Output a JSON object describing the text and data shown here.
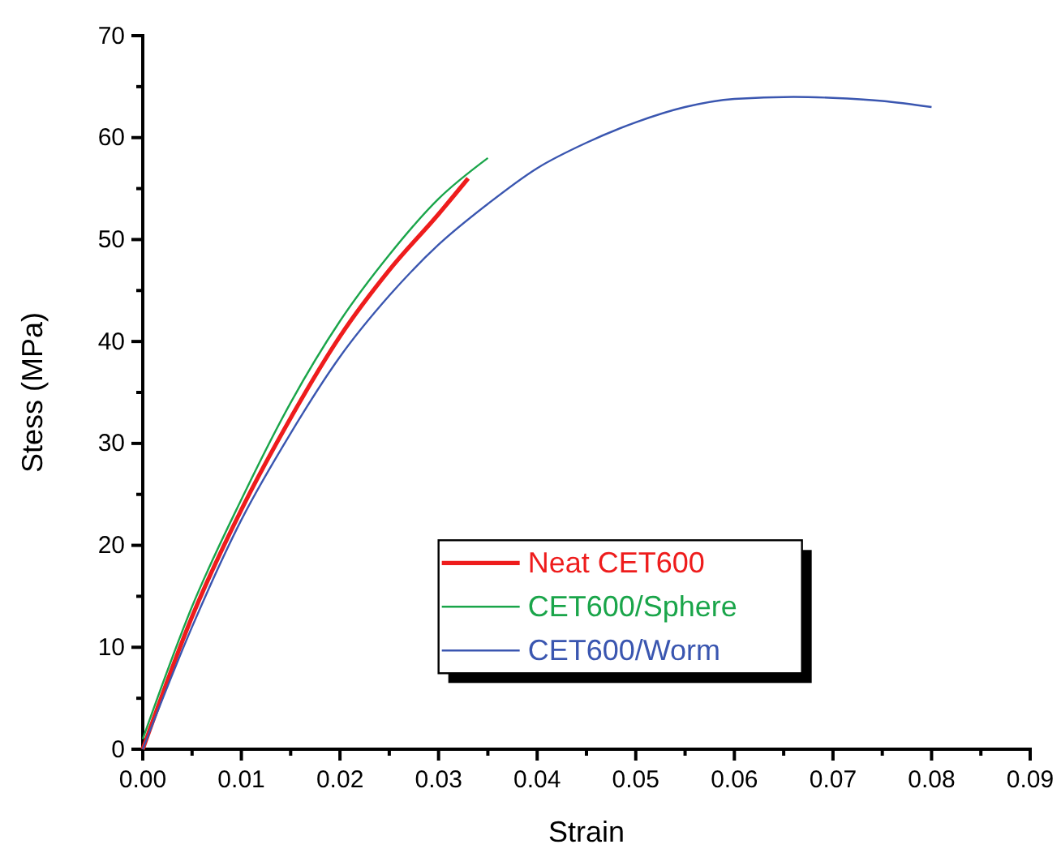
{
  "chart_data": {
    "type": "line",
    "xlabel": "Strain",
    "ylabel": "Stess (MPa)",
    "xlim": [
      0,
      0.09
    ],
    "xticks": [
      {
        "value": 0,
        "label": "0.00"
      },
      {
        "value": 0.01,
        "label": "0.01"
      },
      {
        "value": 0.02,
        "label": "0.02"
      },
      {
        "value": 0.03,
        "label": "0.03"
      },
      {
        "value": 0.04,
        "label": "0.04"
      },
      {
        "value": 0.05,
        "label": "0.05"
      },
      {
        "value": 0.06,
        "label": "0.06"
      },
      {
        "value": 0.07,
        "label": "0.07"
      },
      {
        "value": 0.08,
        "label": "0.08"
      },
      {
        "value": 0.09,
        "label": "0.09"
      }
    ],
    "ylim": [
      0,
      70
    ],
    "yticks": [
      0,
      10,
      20,
      30,
      40,
      50,
      60,
      70
    ],
    "grid": false,
    "legend": "bottom",
    "marker": "none",
    "line_style": "solid",
    "series": [
      {
        "name": "Neat CET600",
        "color": "#ee1c1c",
        "x": [
          0,
          0.005,
          0.01,
          0.015,
          0.02,
          0.025,
          0.03,
          0.033
        ],
        "values": [
          0,
          13,
          23.5,
          32.5,
          40.5,
          47,
          52.5,
          56
        ]
      },
      {
        "name": "CET600/Sphere",
        "color": "#1aa54a",
        "x": [
          0,
          0.005,
          0.01,
          0.015,
          0.02,
          0.025,
          0.03,
          0.035
        ],
        "values": [
          1,
          14,
          24.5,
          34,
          42,
          48.5,
          54,
          58
        ]
      },
      {
        "name": "CET600/Worm",
        "color": "#3a56b0",
        "x": [
          0,
          0.005,
          0.01,
          0.015,
          0.02,
          0.025,
          0.03,
          0.035,
          0.04,
          0.045,
          0.05,
          0.055,
          0.06,
          0.066,
          0.07,
          0.075,
          0.08
        ],
        "values": [
          0,
          12,
          22.5,
          31,
          38.5,
          44.5,
          49.5,
          53.5,
          57,
          59.5,
          61.5,
          63,
          63.8,
          64,
          63.9,
          63.6,
          63
        ]
      }
    ]
  }
}
